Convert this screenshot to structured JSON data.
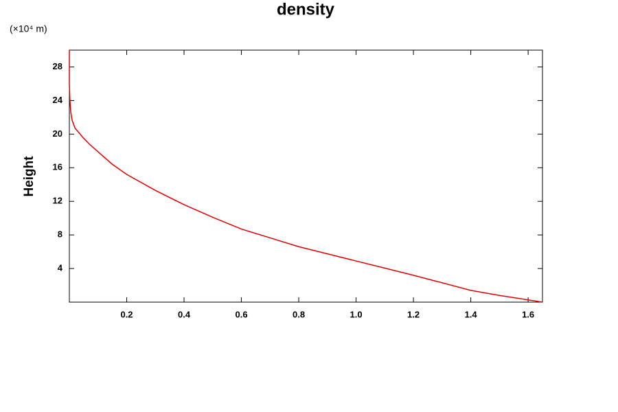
{
  "chart_data": {
    "type": "line",
    "title": "density",
    "y_label": "Height",
    "y_unit": "(×10⁴ m)",
    "x": [
      1.65,
      1.5,
      1.4,
      1.2,
      1.0,
      0.8,
      0.6,
      0.5,
      0.4,
      0.3,
      0.2,
      0.15,
      0.1,
      0.07,
      0.05,
      0.03,
      0.02,
      0.01,
      0.005,
      0.002,
      0,
      0
    ],
    "values": [
      0,
      0.8,
      1.4,
      3.2,
      4.9,
      6.6,
      8.7,
      10.1,
      11.6,
      13.3,
      15.2,
      16.4,
      17.9,
      18.8,
      19.5,
      20.3,
      20.7,
      21.6,
      22.6,
      24,
      26,
      30
    ],
    "color": "#e00000",
    "xlim": [
      0,
      1.65
    ],
    "ylim": [
      0,
      30
    ],
    "xticks": [
      0.2,
      0.4,
      0.6,
      0.8,
      {
        "value": 1,
        "label": "1.0"
      },
      1.2,
      1.4,
      1.6
    ],
    "yticks": [
      4,
      8,
      12,
      16,
      20,
      24,
      28
    ]
  }
}
